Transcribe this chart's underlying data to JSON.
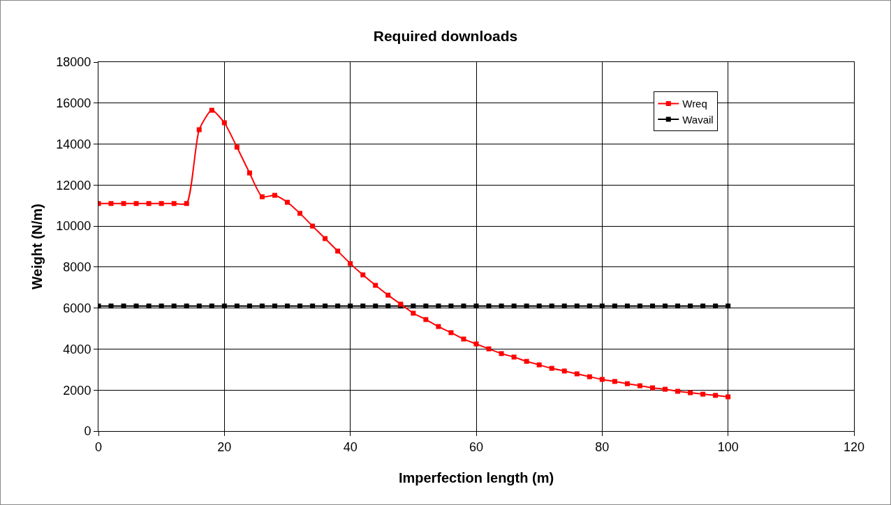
{
  "chart_data": {
    "type": "line",
    "title": "Required downloads",
    "xlabel": "Imperfection length (m)",
    "ylabel": "Weight (N/m)",
    "x": [
      0,
      2,
      4,
      6,
      8,
      10,
      12,
      14,
      16,
      18,
      20,
      22,
      24,
      26,
      28,
      30,
      32,
      34,
      36,
      38,
      40,
      42,
      44,
      46,
      48,
      50,
      52,
      54,
      56,
      58,
      60,
      62,
      64,
      66,
      68,
      70,
      72,
      74,
      76,
      78,
      80,
      82,
      84,
      86,
      88,
      90,
      92,
      94,
      96,
      98,
      100
    ],
    "series": [
      {
        "name": "Wreq",
        "color": "#ff0000",
        "values": [
          11100,
          11100,
          11100,
          11100,
          11100,
          11100,
          11100,
          11100,
          14700,
          15650,
          15040,
          13850,
          12590,
          11430,
          11500,
          11160,
          10620,
          10000,
          9390,
          8780,
          8170,
          7620,
          7110,
          6630,
          6190,
          5750,
          5440,
          5100,
          4800,
          4490,
          4250,
          4010,
          3780,
          3610,
          3400,
          3230,
          3060,
          2930,
          2790,
          2650,
          2520,
          2420,
          2310,
          2210,
          2110,
          2040,
          1940,
          1870,
          1800,
          1740,
          1670
        ]
      },
      {
        "name": "Wavail",
        "color": "#000000",
        "values": [
          6100,
          6100,
          6100,
          6100,
          6100,
          6100,
          6100,
          6100,
          6100,
          6100,
          6100,
          6100,
          6100,
          6100,
          6100,
          6100,
          6100,
          6100,
          6100,
          6100,
          6100,
          6100,
          6100,
          6100,
          6100,
          6100,
          6100,
          6100,
          6100,
          6100,
          6100,
          6100,
          6100,
          6100,
          6100,
          6100,
          6100,
          6100,
          6100,
          6100,
          6100,
          6100,
          6100,
          6100,
          6100,
          6100,
          6100,
          6100,
          6100,
          6100,
          6100
        ]
      }
    ],
    "xlim": [
      0,
      120
    ],
    "xticks": [
      0,
      20,
      40,
      60,
      80,
      100,
      120
    ],
    "ylim": [
      0,
      18000
    ],
    "yticks": [
      0,
      2000,
      4000,
      6000,
      8000,
      10000,
      12000,
      14000,
      16000,
      18000
    ],
    "grid": true,
    "legend": "top right",
    "marker": "square",
    "line_style": "solid"
  }
}
